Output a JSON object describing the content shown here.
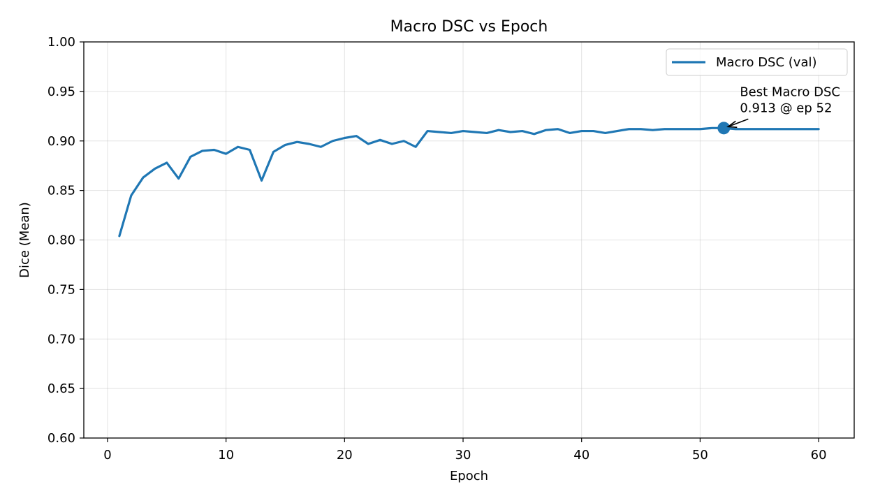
{
  "chart_data": {
    "type": "line",
    "title": "Macro DSC vs Epoch",
    "xlabel": "Epoch",
    "ylabel": "Dice (Mean)",
    "xlim": [
      -2,
      63
    ],
    "ylim": [
      0.6,
      1.0
    ],
    "xticks": [
      0,
      10,
      20,
      30,
      40,
      50,
      60
    ],
    "yticks": [
      "0.60",
      "0.65",
      "0.70",
      "0.75",
      "0.80",
      "0.85",
      "0.90",
      "0.95",
      "1.00"
    ],
    "grid": true,
    "legend_position": "top-right",
    "series": [
      {
        "name": "Macro DSC (val)",
        "color": "#1f77b4",
        "x": [
          1,
          2,
          3,
          4,
          5,
          6,
          7,
          8,
          9,
          10,
          11,
          12,
          13,
          14,
          15,
          16,
          17,
          18,
          19,
          20,
          21,
          22,
          23,
          24,
          25,
          26,
          27,
          28,
          29,
          30,
          31,
          32,
          33,
          34,
          35,
          36,
          37,
          38,
          39,
          40,
          41,
          42,
          43,
          44,
          45,
          46,
          47,
          48,
          49,
          50,
          51,
          52,
          53,
          54,
          55,
          56,
          57,
          58,
          59,
          60
        ],
        "y": [
          0.804,
          0.845,
          0.863,
          0.872,
          0.878,
          0.862,
          0.884,
          0.89,
          0.891,
          0.887,
          0.894,
          0.891,
          0.86,
          0.889,
          0.896,
          0.899,
          0.897,
          0.894,
          0.9,
          0.903,
          0.905,
          0.897,
          0.901,
          0.897,
          0.9,
          0.894,
          0.91,
          0.909,
          0.908,
          0.91,
          0.909,
          0.908,
          0.911,
          0.909,
          0.91,
          0.907,
          0.911,
          0.912,
          0.908,
          0.91,
          0.91,
          0.908,
          0.91,
          0.912,
          0.912,
          0.911,
          0.912,
          0.912,
          0.912,
          0.912,
          0.913,
          0.913,
          0.912,
          0.912,
          0.912,
          0.912,
          0.912,
          0.912,
          0.912,
          0.912
        ]
      }
    ],
    "best_point": {
      "x": 52,
      "y": 0.913
    },
    "annotation_lines": [
      "Best Macro DSC",
      "0.913 @ ep 52"
    ]
  }
}
